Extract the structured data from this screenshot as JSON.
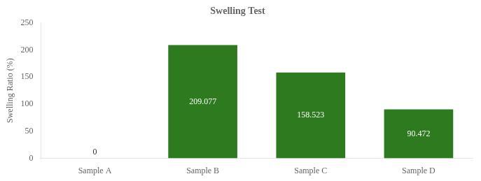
{
  "chart_data": {
    "type": "bar",
    "title": "Swelling Test",
    "categories": [
      "Sample A",
      "Sample B",
      "Sample C",
      "Sample D"
    ],
    "values": [
      0,
      209.077,
      158.523,
      90.472
    ],
    "color": "#2d7a1f",
    "ylabel": "Swelling Ratio (%)",
    "ylim": [
      0,
      250
    ],
    "yticks": [
      0,
      50,
      100,
      150,
      200,
      250
    ],
    "grid": false,
    "data_labels": true
  }
}
